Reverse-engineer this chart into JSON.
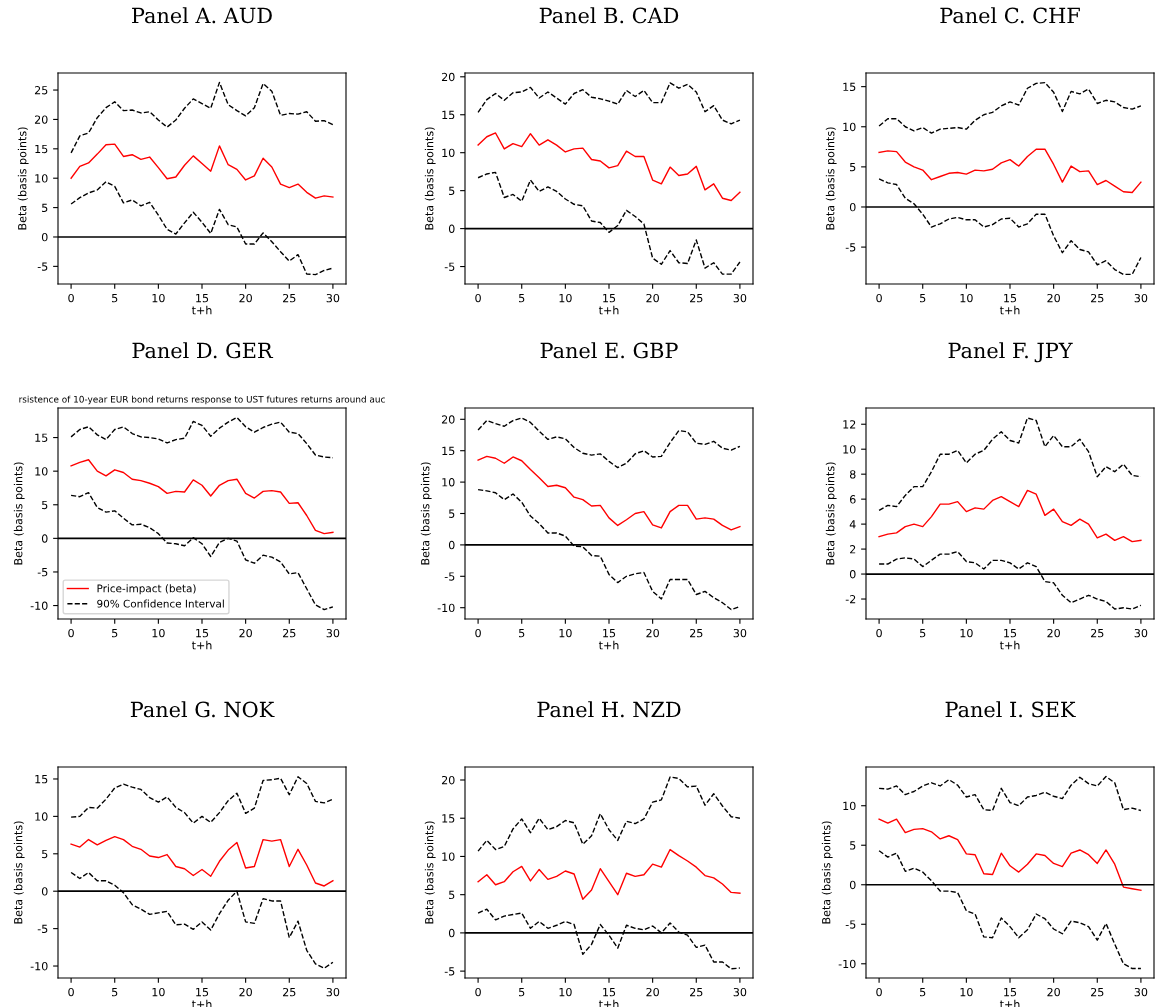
{
  "chart_data": [
    {
      "type": "line",
      "title": "Panel A. AUD",
      "xlabel": "t+h",
      "ylabel": "Beta (basis points)",
      "x": [
        0,
        1,
        2,
        3,
        4,
        5,
        6,
        7,
        8,
        9,
        10,
        11,
        12,
        13,
        14,
        15,
        16,
        17,
        18,
        19,
        20,
        21,
        22,
        23,
        24,
        25,
        26,
        27,
        28,
        29,
        30
      ],
      "xlim": [
        -1.5,
        31.5
      ],
      "xticks": [
        0,
        5,
        10,
        15,
        20,
        25,
        30
      ],
      "ylim": [
        -8.0,
        27.9
      ],
      "yticks": [
        -5,
        0,
        5,
        10,
        15,
        20,
        25
      ],
      "ref_lines": [
        {
          "axis": "y",
          "value": 0,
          "color": "#000000"
        }
      ],
      "legend": false,
      "series": [
        {
          "color": "#ff0000",
          "line_style": "solid",
          "values": [
            10.0,
            12.0,
            12.6,
            14.1,
            15.7,
            15.8,
            13.7,
            14.0,
            13.2,
            13.6,
            11.8,
            9.9,
            10.2,
            12.2,
            13.8,
            12.5,
            11.2,
            15.5,
            12.3,
            11.5,
            9.7,
            10.4,
            13.4,
            11.9,
            9.0,
            8.4,
            9.0,
            7.6,
            6.6,
            7.0,
            6.8
          ]
        },
        {
          "color": "#000000",
          "line_style": "dashed",
          "values": [
            14.3,
            17.2,
            17.7,
            20.3,
            22.0,
            23.0,
            21.5,
            21.6,
            21.1,
            21.3,
            19.9,
            18.7,
            19.9,
            21.9,
            23.5,
            22.7,
            21.9,
            26.3,
            22.5,
            21.5,
            20.6,
            22.0,
            26.1,
            24.8,
            20.7,
            21.0,
            20.9,
            21.3,
            19.7,
            19.8,
            19.1
          ]
        },
        {
          "color": "#000000",
          "line_style": "dashed",
          "values": [
            5.6,
            6.7,
            7.5,
            8.0,
            9.4,
            8.6,
            5.8,
            6.3,
            5.3,
            5.9,
            3.7,
            1.3,
            0.5,
            2.4,
            4.2,
            2.5,
            0.6,
            4.7,
            2.1,
            1.7,
            -1.2,
            -1.2,
            0.7,
            -0.8,
            -2.5,
            -4.1,
            -3.0,
            -6.3,
            -6.4,
            -5.7,
            -5.3
          ]
        }
      ]
    },
    {
      "type": "line",
      "title": "Panel B. CAD",
      "xlabel": "t+h",
      "ylabel": "Beta (basis points)",
      "x": [
        0,
        1,
        2,
        3,
        4,
        5,
        6,
        7,
        8,
        9,
        10,
        11,
        12,
        13,
        14,
        15,
        16,
        17,
        18,
        19,
        20,
        21,
        22,
        23,
        24,
        25,
        26,
        27,
        28,
        29,
        30
      ],
      "xlim": [
        -1.5,
        31.5
      ],
      "xticks": [
        0,
        5,
        10,
        15,
        20,
        25,
        30
      ],
      "ylim": [
        -7.3,
        20.5
      ],
      "yticks": [
        -5,
        0,
        5,
        10,
        15,
        20
      ],
      "ref_lines": [
        {
          "axis": "y",
          "value": 0,
          "color": "#000000"
        }
      ],
      "legend": false,
      "series": [
        {
          "color": "#ff0000",
          "line_style": "solid",
          "values": [
            11.0,
            12.1,
            12.6,
            10.5,
            11.2,
            10.8,
            12.5,
            11.0,
            11.7,
            11.0,
            10.1,
            10.5,
            10.6,
            9.1,
            8.9,
            8.0,
            8.3,
            10.2,
            9.5,
            9.5,
            6.4,
            5.9,
            8.1,
            7.0,
            7.2,
            8.2,
            5.1,
            5.9,
            4.0,
            3.7,
            4.8
          ]
        },
        {
          "color": "#000000",
          "line_style": "dashed",
          "values": [
            15.3,
            17.0,
            17.8,
            16.9,
            17.9,
            18.0,
            18.6,
            17.2,
            18.0,
            17.2,
            16.4,
            17.8,
            18.3,
            17.3,
            17.1,
            16.8,
            16.4,
            18.2,
            17.4,
            18.2,
            16.6,
            16.6,
            19.2,
            18.5,
            19.0,
            18.0,
            15.4,
            16.2,
            14.3,
            13.8,
            14.3
          ]
        },
        {
          "color": "#000000",
          "line_style": "dashed",
          "values": [
            6.7,
            7.2,
            7.4,
            4.1,
            4.5,
            3.6,
            6.4,
            4.9,
            5.5,
            4.9,
            3.9,
            3.2,
            3.0,
            1.0,
            0.8,
            -0.5,
            0.4,
            2.4,
            1.6,
            0.6,
            -3.9,
            -4.7,
            -2.9,
            -4.5,
            -4.6,
            -1.5,
            -5.2,
            -4.5,
            -6.0,
            -6.0,
            -4.4
          ]
        }
      ]
    },
    {
      "type": "line",
      "title": "Panel C. CHF",
      "xlabel": "t+h",
      "ylabel": "Beta (basis points)",
      "x": [
        0,
        1,
        2,
        3,
        4,
        5,
        6,
        7,
        8,
        9,
        10,
        11,
        12,
        13,
        14,
        15,
        16,
        17,
        18,
        19,
        20,
        21,
        22,
        23,
        24,
        25,
        26,
        27,
        28,
        29,
        30
      ],
      "xlim": [
        -1.5,
        31.5
      ],
      "xticks": [
        0,
        5,
        10,
        15,
        20,
        25,
        30
      ],
      "ylim": [
        -9.6,
        16.7
      ],
      "yticks": [
        -5,
        0,
        5,
        10,
        15
      ],
      "ref_lines": [
        {
          "axis": "y",
          "value": 0,
          "color": "#000000"
        }
      ],
      "legend": false,
      "series": [
        {
          "color": "#ff0000",
          "line_style": "solid",
          "values": [
            6.8,
            7.0,
            6.9,
            5.6,
            5.0,
            4.6,
            3.4,
            3.8,
            4.2,
            4.3,
            4.1,
            4.6,
            4.5,
            4.7,
            5.5,
            5.9,
            5.1,
            6.3,
            7.2,
            7.2,
            5.3,
            3.1,
            5.1,
            4.4,
            4.5,
            2.8,
            3.3,
            2.6,
            1.9,
            1.8,
            3.1
          ]
        },
        {
          "color": "#000000",
          "line_style": "dashed",
          "values": [
            10.1,
            11.0,
            11.0,
            10.0,
            9.5,
            9.9,
            9.2,
            9.7,
            9.8,
            9.9,
            9.7,
            10.8,
            11.5,
            11.8,
            12.6,
            13.1,
            12.7,
            14.8,
            15.4,
            15.5,
            14.3,
            11.9,
            14.4,
            14.1,
            14.7,
            12.9,
            13.3,
            13.1,
            12.4,
            12.2,
            12.6
          ]
        },
        {
          "color": "#000000",
          "line_style": "dashed",
          "values": [
            3.5,
            3.0,
            2.8,
            1.1,
            0.4,
            -0.9,
            -2.5,
            -2.1,
            -1.5,
            -1.3,
            -1.6,
            -1.6,
            -2.5,
            -2.2,
            -1.5,
            -1.4,
            -2.5,
            -2.1,
            -0.9,
            -0.9,
            -3.6,
            -5.7,
            -4.2,
            -5.3,
            -5.6,
            -7.2,
            -6.7,
            -7.8,
            -8.4,
            -8.4,
            -6.3
          ]
        }
      ]
    },
    {
      "type": "line",
      "title": "Panel D. GER",
      "subtitle": "rsistence of 10-year EUR bond returns response to UST futures returns around auc",
      "xlabel": "t+h",
      "ylabel": "Beta (basis points)",
      "x": [
        0,
        1,
        2,
        3,
        4,
        5,
        6,
        7,
        8,
        9,
        10,
        11,
        12,
        13,
        14,
        15,
        16,
        17,
        18,
        19,
        20,
        21,
        22,
        23,
        24,
        25,
        26,
        27,
        28,
        29,
        30
      ],
      "xlim": [
        -1.5,
        31.5
      ],
      "xticks": [
        0,
        5,
        10,
        15,
        20,
        25,
        30
      ],
      "ylim": [
        -12.0,
        19.4
      ],
      "yticks": [
        -10,
        -5,
        0,
        5,
        10,
        15
      ],
      "ref_lines": [
        {
          "axis": "y",
          "value": 0,
          "color": "#000000"
        }
      ],
      "legend": "lower left",
      "series": [
        {
          "name": "Price-impact (beta)",
          "color": "#ff0000",
          "line_style": "solid",
          "values": [
            10.8,
            11.3,
            11.7,
            10.0,
            9.3,
            10.2,
            9.8,
            8.8,
            8.6,
            8.2,
            7.7,
            6.7,
            7.0,
            6.9,
            8.7,
            7.9,
            6.3,
            7.9,
            8.6,
            8.8,
            6.7,
            6.0,
            7.0,
            7.1,
            6.9,
            5.2,
            5.3,
            3.4,
            1.2,
            0.7,
            0.9
          ]
        },
        {
          "name": "90% Confidence Interval",
          "color": "#000000",
          "line_style": "dashed",
          "values": [
            15.1,
            16.2,
            16.6,
            15.4,
            14.7,
            16.2,
            16.6,
            15.6,
            15.1,
            15.0,
            14.8,
            14.2,
            14.7,
            14.9,
            17.4,
            16.8,
            15.2,
            16.4,
            17.3,
            18.0,
            16.6,
            15.8,
            16.5,
            17.0,
            17.3,
            15.8,
            15.6,
            14.1,
            12.4,
            12.1,
            12.0
          ]
        },
        {
          "color": "#000000",
          "line_style": "dashed",
          "values": [
            6.4,
            6.2,
            6.8,
            4.6,
            3.9,
            4.1,
            3.0,
            2.0,
            2.1,
            1.6,
            0.7,
            -0.7,
            -0.8,
            -1.1,
            0.1,
            -0.8,
            -2.7,
            -0.6,
            0.0,
            -0.4,
            -3.2,
            -3.7,
            -2.5,
            -2.8,
            -3.5,
            -5.3,
            -5.1,
            -7.5,
            -9.9,
            -10.6,
            -10.2
          ]
        }
      ]
    },
    {
      "type": "line",
      "title": "Panel E. GBP",
      "xlabel": "t+h",
      "ylabel": "Beta (basis points)",
      "x": [
        0,
        1,
        2,
        3,
        4,
        5,
        6,
        7,
        8,
        9,
        10,
        11,
        12,
        13,
        14,
        15,
        16,
        17,
        18,
        19,
        20,
        21,
        22,
        23,
        24,
        25,
        26,
        27,
        28,
        29,
        30
      ],
      "xlim": [
        -1.5,
        31.5
      ],
      "xticks": [
        0,
        5,
        10,
        15,
        20,
        25,
        30
      ],
      "ylim": [
        -11.8,
        21.8
      ],
      "yticks": [
        -10,
        -5,
        0,
        5,
        10,
        15,
        20
      ],
      "ref_lines": [
        {
          "axis": "y",
          "value": 0,
          "color": "#000000"
        }
      ],
      "legend": false,
      "series": [
        {
          "color": "#ff0000",
          "line_style": "solid",
          "values": [
            13.5,
            14.1,
            13.8,
            13.0,
            14.0,
            13.4,
            12.0,
            10.7,
            9.3,
            9.5,
            9.1,
            7.6,
            7.2,
            6.2,
            6.3,
            4.3,
            3.1,
            4.0,
            5.0,
            5.3,
            3.2,
            2.7,
            5.3,
            6.3,
            6.3,
            4.1,
            4.3,
            4.1,
            3.1,
            2.4,
            2.9
          ]
        },
        {
          "color": "#000000",
          "line_style": "dashed",
          "values": [
            18.3,
            19.8,
            19.3,
            18.9,
            19.8,
            20.2,
            19.5,
            18.1,
            16.8,
            17.2,
            16.9,
            15.5,
            14.6,
            14.3,
            14.5,
            13.3,
            12.3,
            13.0,
            14.5,
            15.0,
            14.0,
            14.1,
            16.3,
            18.2,
            18.0,
            16.2,
            16.0,
            16.5,
            15.4,
            15.1,
            15.7
          ]
        },
        {
          "color": "#000000",
          "line_style": "dashed",
          "values": [
            8.8,
            8.6,
            8.3,
            7.2,
            8.1,
            6.8,
            4.6,
            3.4,
            1.9,
            1.9,
            1.4,
            -0.2,
            -0.3,
            -1.7,
            -1.8,
            -4.7,
            -6.0,
            -5.0,
            -4.6,
            -4.4,
            -7.4,
            -8.6,
            -5.5,
            -5.5,
            -5.5,
            -7.9,
            -7.4,
            -8.4,
            -9.2,
            -10.3,
            -9.8
          ]
        }
      ]
    },
    {
      "type": "line",
      "title": "Panel F. JPY",
      "xlabel": "t+h",
      "ylabel": "Beta (basis points)",
      "x": [
        0,
        1,
        2,
        3,
        4,
        5,
        6,
        7,
        8,
        9,
        10,
        11,
        12,
        13,
        14,
        15,
        16,
        17,
        18,
        19,
        20,
        21,
        22,
        23,
        24,
        25,
        26,
        27,
        28,
        29,
        30
      ],
      "xlim": [
        -1.5,
        31.5
      ],
      "xticks": [
        0,
        5,
        10,
        15,
        20,
        25,
        30
      ],
      "ylim": [
        -3.6,
        13.3
      ],
      "yticks": [
        -2,
        0,
        2,
        4,
        6,
        8,
        10,
        12
      ],
      "ref_lines": [
        {
          "axis": "y",
          "value": 0,
          "color": "#000000"
        }
      ],
      "legend": false,
      "series": [
        {
          "color": "#ff0000",
          "line_style": "solid",
          "values": [
            3.0,
            3.2,
            3.3,
            3.8,
            4.0,
            3.8,
            4.6,
            5.6,
            5.6,
            5.8,
            5.0,
            5.3,
            5.2,
            5.9,
            6.2,
            5.8,
            5.4,
            6.7,
            6.4,
            4.7,
            5.2,
            4.2,
            3.9,
            4.4,
            4.0,
            2.9,
            3.2,
            2.7,
            3.0,
            2.6,
            2.7
          ]
        },
        {
          "color": "#000000",
          "line_style": "dashed",
          "values": [
            5.1,
            5.5,
            5.4,
            6.3,
            7.0,
            7.0,
            8.2,
            9.6,
            9.6,
            9.9,
            8.9,
            9.6,
            9.9,
            10.8,
            11.4,
            10.7,
            10.5,
            12.5,
            12.3,
            10.2,
            11.1,
            10.2,
            10.2,
            10.8,
            9.8,
            7.8,
            8.6,
            8.2,
            8.8,
            7.9,
            7.8
          ]
        },
        {
          "color": "#000000",
          "line_style": "dashed",
          "values": [
            0.8,
            0.8,
            1.2,
            1.3,
            1.2,
            0.6,
            1.1,
            1.6,
            1.6,
            1.8,
            1.0,
            0.9,
            0.4,
            1.1,
            1.1,
            0.9,
            0.4,
            0.9,
            0.6,
            -0.6,
            -0.7,
            -1.7,
            -2.3,
            -2.0,
            -1.7,
            -2.0,
            -2.2,
            -2.8,
            -2.7,
            -2.8,
            -2.5
          ]
        }
      ]
    },
    {
      "type": "line",
      "title": "Panel G. NOK",
      "xlabel": "t+h",
      "ylabel": "Beta (basis points)",
      "x": [
        0,
        1,
        2,
        3,
        4,
        5,
        6,
        7,
        8,
        9,
        10,
        11,
        12,
        13,
        14,
        15,
        16,
        17,
        18,
        19,
        20,
        21,
        22,
        23,
        24,
        25,
        26,
        27,
        28,
        29,
        30
      ],
      "xlim": [
        -1.5,
        31.5
      ],
      "xticks": [
        0,
        5,
        10,
        15,
        20,
        25,
        30
      ],
      "ylim": [
        -11.6,
        16.6
      ],
      "yticks": [
        -10,
        -5,
        0,
        5,
        10,
        15
      ],
      "ref_lines": [
        {
          "axis": "y",
          "value": 0,
          "color": "#000000"
        }
      ],
      "legend": false,
      "series": [
        {
          "color": "#ff0000",
          "line_style": "solid",
          "values": [
            6.3,
            5.9,
            6.9,
            6.2,
            6.8,
            7.3,
            6.9,
            6.0,
            5.6,
            4.7,
            4.5,
            4.9,
            3.3,
            3.0,
            2.1,
            2.9,
            2.0,
            4.0,
            5.5,
            6.5,
            3.1,
            3.3,
            6.9,
            6.7,
            6.9,
            3.3,
            5.6,
            3.5,
            1.1,
            0.7,
            1.4
          ]
        },
        {
          "color": "#000000",
          "line_style": "dashed",
          "values": [
            9.9,
            10.0,
            11.2,
            11.1,
            12.3,
            13.8,
            14.3,
            13.9,
            13.6,
            12.5,
            11.9,
            12.6,
            11.2,
            10.5,
            9.1,
            10.0,
            9.2,
            10.5,
            12.1,
            13.1,
            10.4,
            11.1,
            14.8,
            14.9,
            15.1,
            12.9,
            15.3,
            14.4,
            12.0,
            11.8,
            12.3
          ]
        },
        {
          "color": "#000000",
          "line_style": "dashed",
          "values": [
            2.5,
            1.7,
            2.5,
            1.4,
            1.4,
            0.8,
            -0.2,
            -1.8,
            -2.4,
            -3.1,
            -2.9,
            -2.7,
            -4.5,
            -4.4,
            -5.1,
            -4.1,
            -5.2,
            -3.0,
            -1.2,
            0.0,
            -4.1,
            -4.3,
            -1.0,
            -1.3,
            -1.3,
            -6.2,
            -4.0,
            -7.9,
            -9.7,
            -10.3,
            -9.5
          ]
        }
      ]
    },
    {
      "type": "line",
      "title": "Panel H. NZD",
      "xlabel": "t+h",
      "ylabel": "Beta (basis points)",
      "x": [
        0,
        1,
        2,
        3,
        4,
        5,
        6,
        7,
        8,
        9,
        10,
        11,
        12,
        13,
        14,
        15,
        16,
        17,
        18,
        19,
        20,
        21,
        22,
        23,
        24,
        25,
        26,
        27,
        28,
        29,
        30
      ],
      "xlim": [
        -1.5,
        31.5
      ],
      "xticks": [
        0,
        5,
        10,
        15,
        20,
        25,
        30
      ],
      "ylim": [
        -5.9,
        21.7
      ],
      "yticks": [
        -5,
        0,
        5,
        10,
        15,
        20
      ],
      "ref_lines": [
        {
          "axis": "y",
          "value": 0,
          "color": "#000000"
        }
      ],
      "legend": false,
      "series": [
        {
          "color": "#ff0000",
          "line_style": "solid",
          "values": [
            6.7,
            7.6,
            6.3,
            6.7,
            8.0,
            8.7,
            6.8,
            8.3,
            7.0,
            7.4,
            8.1,
            7.7,
            4.4,
            5.6,
            8.4,
            6.7,
            5.0,
            7.8,
            7.4,
            7.6,
            9.0,
            8.6,
            10.9,
            10.1,
            9.4,
            8.6,
            7.5,
            7.2,
            6.4,
            5.3,
            5.2
          ]
        },
        {
          "color": "#000000",
          "line_style": "dashed",
          "values": [
            10.7,
            12.1,
            10.9,
            11.3,
            13.6,
            14.9,
            13.1,
            15.0,
            13.5,
            13.9,
            14.7,
            14.4,
            11.6,
            12.7,
            15.6,
            13.5,
            12.1,
            14.6,
            14.3,
            14.9,
            17.1,
            17.4,
            20.4,
            20.2,
            19.1,
            19.2,
            16.7,
            18.2,
            16.6,
            15.2,
            15.0
          ]
        },
        {
          "color": "#000000",
          "line_style": "dashed",
          "values": [
            2.6,
            3.1,
            1.7,
            2.2,
            2.4,
            2.6,
            0.6,
            1.5,
            0.6,
            1.0,
            1.5,
            1.1,
            -2.8,
            -1.5,
            1.1,
            -0.3,
            -2.0,
            1.0,
            0.6,
            0.4,
            0.9,
            0.0,
            1.3,
            0.1,
            -0.3,
            -1.9,
            -1.6,
            -3.8,
            -3.8,
            -4.7,
            -4.6
          ]
        }
      ]
    },
    {
      "type": "line",
      "title": "Panel I. SEK",
      "xlabel": "t+h",
      "ylabel": "Beta (basis points)",
      "x": [
        0,
        1,
        2,
        3,
        4,
        5,
        6,
        7,
        8,
        9,
        10,
        11,
        12,
        13,
        14,
        15,
        16,
        17,
        18,
        19,
        20,
        21,
        22,
        23,
        24,
        25,
        26,
        27,
        28,
        29,
        30
      ],
      "xlim": [
        -1.5,
        31.5
      ],
      "xticks": [
        0,
        5,
        10,
        15,
        20,
        25,
        30
      ],
      "ylim": [
        -11.8,
        14.9
      ],
      "yticks": [
        -10,
        -5,
        0,
        5,
        10
      ],
      "ref_lines": [
        {
          "axis": "y",
          "value": 0,
          "color": "#000000"
        }
      ],
      "legend": false,
      "series": [
        {
          "color": "#ff0000",
          "line_style": "solid",
          "values": [
            8.3,
            7.8,
            8.3,
            6.6,
            7.0,
            7.1,
            6.7,
            5.8,
            6.2,
            5.7,
            3.9,
            3.8,
            1.4,
            1.3,
            4.0,
            2.4,
            1.6,
            2.6,
            3.9,
            3.7,
            2.7,
            2.3,
            4.0,
            4.4,
            3.8,
            2.7,
            4.4,
            2.6,
            -0.3,
            -0.5,
            -0.7
          ]
        },
        {
          "color": "#000000",
          "line_style": "dashed",
          "values": [
            12.2,
            12.1,
            12.5,
            11.4,
            11.8,
            12.5,
            12.9,
            12.5,
            13.3,
            12.6,
            11.1,
            11.4,
            9.5,
            9.4,
            12.2,
            10.4,
            10.0,
            11.1,
            11.3,
            11.7,
            11.2,
            10.9,
            12.6,
            13.6,
            12.8,
            12.5,
            13.7,
            12.9,
            9.5,
            9.7,
            9.4
          ]
        },
        {
          "color": "#000000",
          "line_style": "dashed",
          "values": [
            4.3,
            3.5,
            4.0,
            1.7,
            2.1,
            1.6,
            0.5,
            -0.8,
            -0.8,
            -1.0,
            -3.3,
            -3.7,
            -6.6,
            -6.7,
            -4.2,
            -5.3,
            -6.7,
            -5.7,
            -3.7,
            -4.3,
            -5.6,
            -6.2,
            -4.6,
            -4.8,
            -5.3,
            -7.0,
            -4.9,
            -7.5,
            -10.0,
            -10.6,
            -10.6
          ]
        }
      ]
    }
  ]
}
